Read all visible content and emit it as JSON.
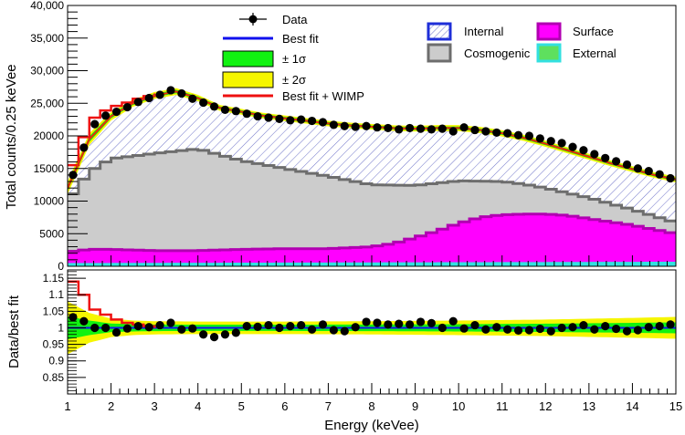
{
  "colors": {
    "internal_hatch": "#6f74c9",
    "internal_line": "#1e2ed8",
    "cosmogenic_fill": "#cccccc",
    "cosmogenic_line": "#6d6d6d",
    "surface_fill": "#ff00ff",
    "surface_line": "#b100b1",
    "external_fill": "#33e0e0",
    "best_fit_line": "#1010ee",
    "wimp_line": "#ee1010",
    "band1": "#11f211",
    "band2": "#f6f600",
    "data_marker": "#000000"
  },
  "chart_data": [
    {
      "type": "line",
      "panel": "top",
      "xlabel": "Energy (keVee)",
      "ylabel": "Total counts/0.25 keVee",
      "xlim": [
        1,
        15
      ],
      "ylim": [
        0,
        40000
      ],
      "y_tick_labels": [
        "0",
        "5000",
        "10000",
        "15000",
        "20000",
        "25,000",
        "30,000",
        "35,000",
        "40,000"
      ],
      "y_tick_values": [
        0,
        5000,
        10000,
        15000,
        20000,
        25000,
        30000,
        35000,
        40000
      ],
      "legend": [
        {
          "key": "data",
          "label": "Data"
        },
        {
          "key": "best_fit",
          "label": "Best fit"
        },
        {
          "key": "band1",
          "label": "± 1σ"
        },
        {
          "key": "band2",
          "label": "± 2σ"
        },
        {
          "key": "wimp",
          "label": "Best fit + WIMP"
        },
        {
          "key": "internal",
          "label": "Internal"
        },
        {
          "key": "cosmogenic",
          "label": "Cosmogenic"
        },
        {
          "key": "surface",
          "label": "Surface"
        },
        {
          "key": "external",
          "label": "External"
        }
      ],
      "total_model": {
        "x": [
          1.0,
          1.5,
          2.0,
          2.5,
          3.0,
          3.5,
          4.0,
          4.5,
          5.0,
          5.5,
          6.0,
          6.5,
          7.0,
          7.5,
          8.0,
          8.5,
          9.0,
          9.5,
          10.0,
          10.5,
          11.0,
          11.5,
          12.0,
          12.5,
          13.0,
          13.5,
          14.0,
          14.5,
          15.0
        ],
        "y": [
          12000,
          19500,
          23000,
          25000,
          26200,
          26800,
          25800,
          24300,
          23700,
          23100,
          22700,
          22300,
          21900,
          21600,
          21400,
          21200,
          21100,
          21200,
          21200,
          20900,
          20400,
          19700,
          18800,
          17800,
          16800,
          15800,
          14900,
          14000,
          13300
        ]
      },
      "wimp_model": {
        "x": [
          1.0,
          1.25,
          1.5,
          1.75,
          2.0,
          2.25,
          2.5,
          2.75,
          3.0
        ],
        "y": [
          15500,
          19800,
          22800,
          23900,
          24600,
          25100,
          25700,
          26100,
          26500
        ]
      },
      "internal_bottom": {
        "x": [
          1.0,
          1.5,
          2.0,
          3.0,
          4.0,
          5.0,
          6.0,
          7.0,
          8.0,
          9.0,
          10.0,
          11.0,
          11.5,
          12.0,
          13.0,
          14.0,
          15.0
        ],
        "y": [
          10000,
          14500,
          16500,
          17300,
          18000,
          16200,
          15000,
          13800,
          12500,
          12400,
          13100,
          13000,
          12600,
          12000,
          10500,
          8700,
          6700
        ]
      },
      "cosmogenic_bottom": {
        "x": [
          1.0,
          1.5,
          2.0,
          3.0,
          4.0,
          5.0,
          6.0,
          7.0,
          8.0,
          8.5,
          9.0,
          9.5,
          10.0,
          10.5,
          11.0,
          11.5,
          12.0,
          12.5,
          13.0,
          14.0,
          15.0
        ],
        "y": [
          2200,
          2600,
          2600,
          2400,
          2400,
          2600,
          2700,
          2700,
          3000,
          3500,
          4400,
          5400,
          6600,
          7500,
          7900,
          8000,
          8000,
          7800,
          7300,
          6300,
          5000
        ]
      },
      "surface_bottom": {
        "x": [
          1.0,
          15.0
        ],
        "y": [
          500,
          700
        ]
      },
      "data": {
        "x": [
          1.125,
          1.375,
          1.625,
          1.875,
          2.125,
          2.375,
          2.625,
          2.875,
          3.125,
          3.375,
          3.625,
          3.875,
          4.125,
          4.375,
          4.625,
          4.875,
          5.125,
          5.375,
          5.625,
          5.875,
          6.125,
          6.375,
          6.625,
          6.875,
          7.125,
          7.375,
          7.625,
          7.875,
          8.125,
          8.375,
          8.625,
          8.875,
          9.125,
          9.375,
          9.625,
          9.875,
          10.125,
          10.375,
          10.625,
          10.875,
          11.125,
          11.375,
          11.625,
          11.875,
          12.125,
          12.375,
          12.625,
          12.875,
          13.125,
          13.375,
          13.625,
          13.875,
          14.125,
          14.375,
          14.625,
          14.875
        ],
        "y": [
          14000,
          18200,
          21800,
          23100,
          23700,
          24400,
          25200,
          25800,
          26300,
          27000,
          26500,
          25700,
          25100,
          24500,
          24000,
          23800,
          23400,
          23000,
          22800,
          22600,
          22400,
          22500,
          22300,
          22100,
          21700,
          21500,
          21400,
          21500,
          21300,
          21200,
          21000,
          21200,
          21100,
          21000,
          21100,
          20700,
          21300,
          20900,
          20700,
          20500,
          20400,
          20100,
          20000,
          19600,
          19200,
          18900,
          18300,
          17800,
          17200,
          16600,
          16100,
          15600,
          15000,
          14600,
          14100,
          13500
        ]
      }
    },
    {
      "type": "line",
      "panel": "bottom",
      "xlabel": "Energy (keVee)",
      "ylabel": "Data/best fit",
      "xlim": [
        1,
        15
      ],
      "ylim": [
        0.8,
        1.175
      ],
      "x_tick_labels": [
        "1",
        "2",
        "3",
        "4",
        "5",
        "6",
        "7",
        "8",
        "9",
        "10",
        "11",
        "12",
        "13",
        "14",
        "15"
      ],
      "x_tick_values": [
        1,
        2,
        3,
        4,
        5,
        6,
        7,
        8,
        9,
        10,
        11,
        12,
        13,
        14,
        15
      ],
      "y_tick_labels": [
        "0.85",
        "0.9",
        "0.95",
        "1",
        "1.05",
        "1.1",
        "1.15"
      ],
      "y_tick_values": [
        0.85,
        0.9,
        0.95,
        1.0,
        1.05,
        1.1,
        1.15
      ],
      "band2_halfwidth": {
        "x": [
          1.0,
          1.5,
          2.0,
          2.5,
          3.0,
          4.0,
          6.0,
          8.0,
          10.0,
          12.0,
          14.0,
          15.0
        ],
        "y": [
          0.08,
          0.045,
          0.028,
          0.022,
          0.02,
          0.019,
          0.019,
          0.02,
          0.022,
          0.025,
          0.03,
          0.033
        ]
      },
      "band1_halfwidth": {
        "x": [
          1.0,
          1.5,
          2.0,
          2.5,
          3.0,
          4.0,
          6.0,
          8.0,
          10.0,
          12.0,
          14.0,
          15.0
        ],
        "y": [
          0.035,
          0.022,
          0.013,
          0.011,
          0.01,
          0.0095,
          0.0095,
          0.01,
          0.011,
          0.0125,
          0.015,
          0.0165
        ]
      },
      "wimp_ratio": {
        "x": [
          1.0,
          1.25,
          1.5,
          1.75,
          2.0,
          2.25,
          2.5,
          2.75,
          3.0
        ],
        "y": [
          1.14,
          1.1,
          1.055,
          1.04,
          1.025,
          1.015,
          1.01,
          1.005,
          1.0
        ]
      },
      "data": {
        "x": [
          1.125,
          1.375,
          1.625,
          1.875,
          2.125,
          2.375,
          2.625,
          2.875,
          3.125,
          3.375,
          3.625,
          3.875,
          4.125,
          4.375,
          4.625,
          4.875,
          5.125,
          5.375,
          5.625,
          5.875,
          6.125,
          6.375,
          6.625,
          6.875,
          7.125,
          7.375,
          7.625,
          7.875,
          8.125,
          8.375,
          8.625,
          8.875,
          9.125,
          9.375,
          9.625,
          9.875,
          10.125,
          10.375,
          10.625,
          10.875,
          11.125,
          11.375,
          11.625,
          11.875,
          12.125,
          12.375,
          12.625,
          12.875,
          13.125,
          13.375,
          13.625,
          13.875,
          14.125,
          14.375,
          14.625,
          14.875
        ],
        "y": [
          1.032,
          1.02,
          1.0,
          1.0,
          0.986,
          0.998,
          1.005,
          1.002,
          1.008,
          1.015,
          0.995,
          0.998,
          0.98,
          0.972,
          0.98,
          0.985,
          1.005,
          1.003,
          1.008,
          1.0,
          1.005,
          1.008,
          0.995,
          1.01,
          0.993,
          0.99,
          1.002,
          1.018,
          1.015,
          1.01,
          1.012,
          1.01,
          1.018,
          1.014,
          1.0,
          1.02,
          0.998,
          1.008,
          0.995,
          1.002,
          0.995,
          0.992,
          0.993,
          0.997,
          0.99,
          1.0,
          1.002,
          1.008,
          0.995,
          1.005,
          0.997,
          0.99,
          0.993,
          1.002,
          1.005,
          1.01
        ]
      }
    }
  ]
}
